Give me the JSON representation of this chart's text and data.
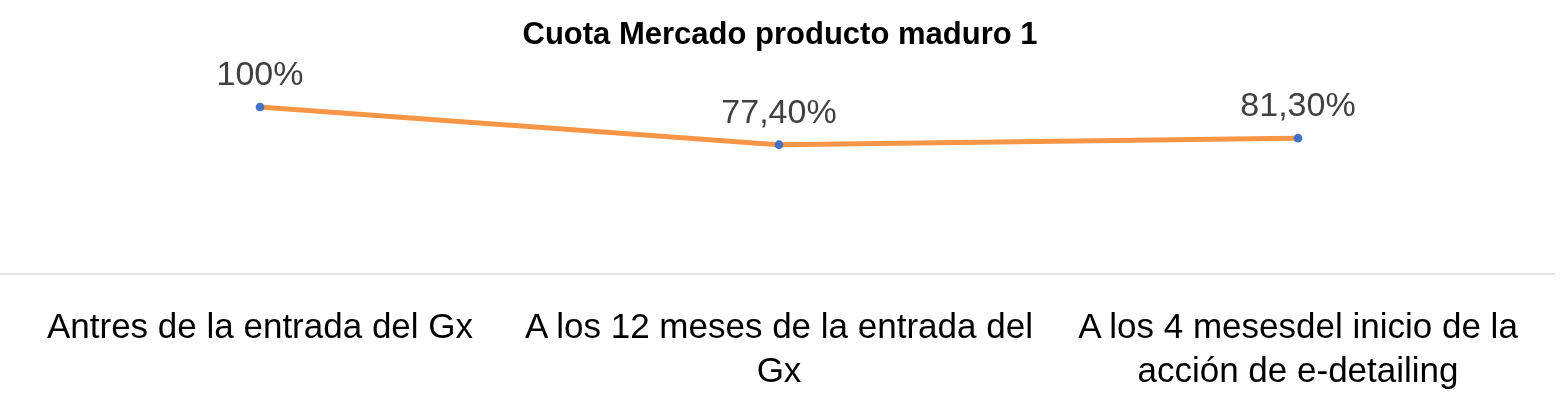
{
  "chart_data": {
    "type": "line",
    "title": "Cuota Mercado producto maduro 1",
    "categories": [
      "Antres de la entrada del Gx",
      "A los 12 meses de la entrada del Gx",
      "A los 4 mesesdel inicio de la acción de e-detailing"
    ],
    "series": [
      {
        "color": "#f79646",
        "colors": [
          "#4472c4",
          "#4472c4",
          "#4472c4"
        ],
        "values": [
          100,
          77.4,
          81.3
        ],
        "value_labels": [
          "100%",
          "77,40%",
          "81,30%"
        ]
      }
    ],
    "marker": "circle",
    "tick_labels": "x"
  }
}
